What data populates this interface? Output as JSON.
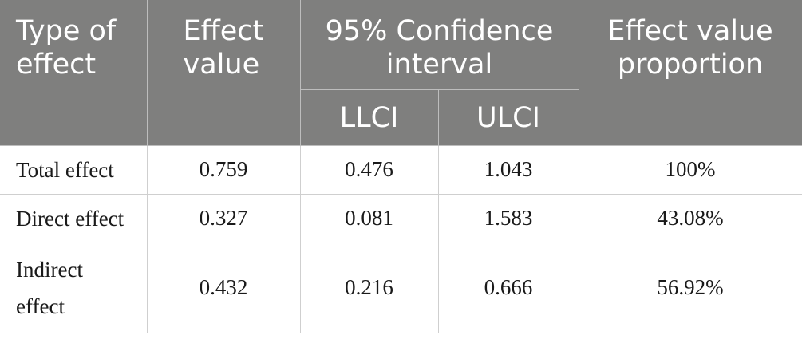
{
  "headers": {
    "type_of_effect": "Type of effect",
    "effect_value": "Effect value",
    "confidence_interval": "95% Confidence interval",
    "effect_value_proportion": "Effect value proportion",
    "llci": "LLCI",
    "ulci": "ULCI"
  },
  "rows": [
    {
      "type": "Total effect",
      "effect_value": "0.759",
      "llci": "0.476",
      "ulci": "1.043",
      "proportion": "100%"
    },
    {
      "type": "Direct effect",
      "effect_value": "0.327",
      "llci": "0.081",
      "ulci": "1.583",
      "proportion": "43.08%"
    },
    {
      "type": "Indirect effect",
      "effect_value": "0.432",
      "llci": "0.216",
      "ulci": "0.666",
      "proportion": "56.92%"
    }
  ],
  "colors": {
    "header_bg": "#7f7f7e",
    "header_text": "#ffffff",
    "border": "#cfcfcf"
  }
}
